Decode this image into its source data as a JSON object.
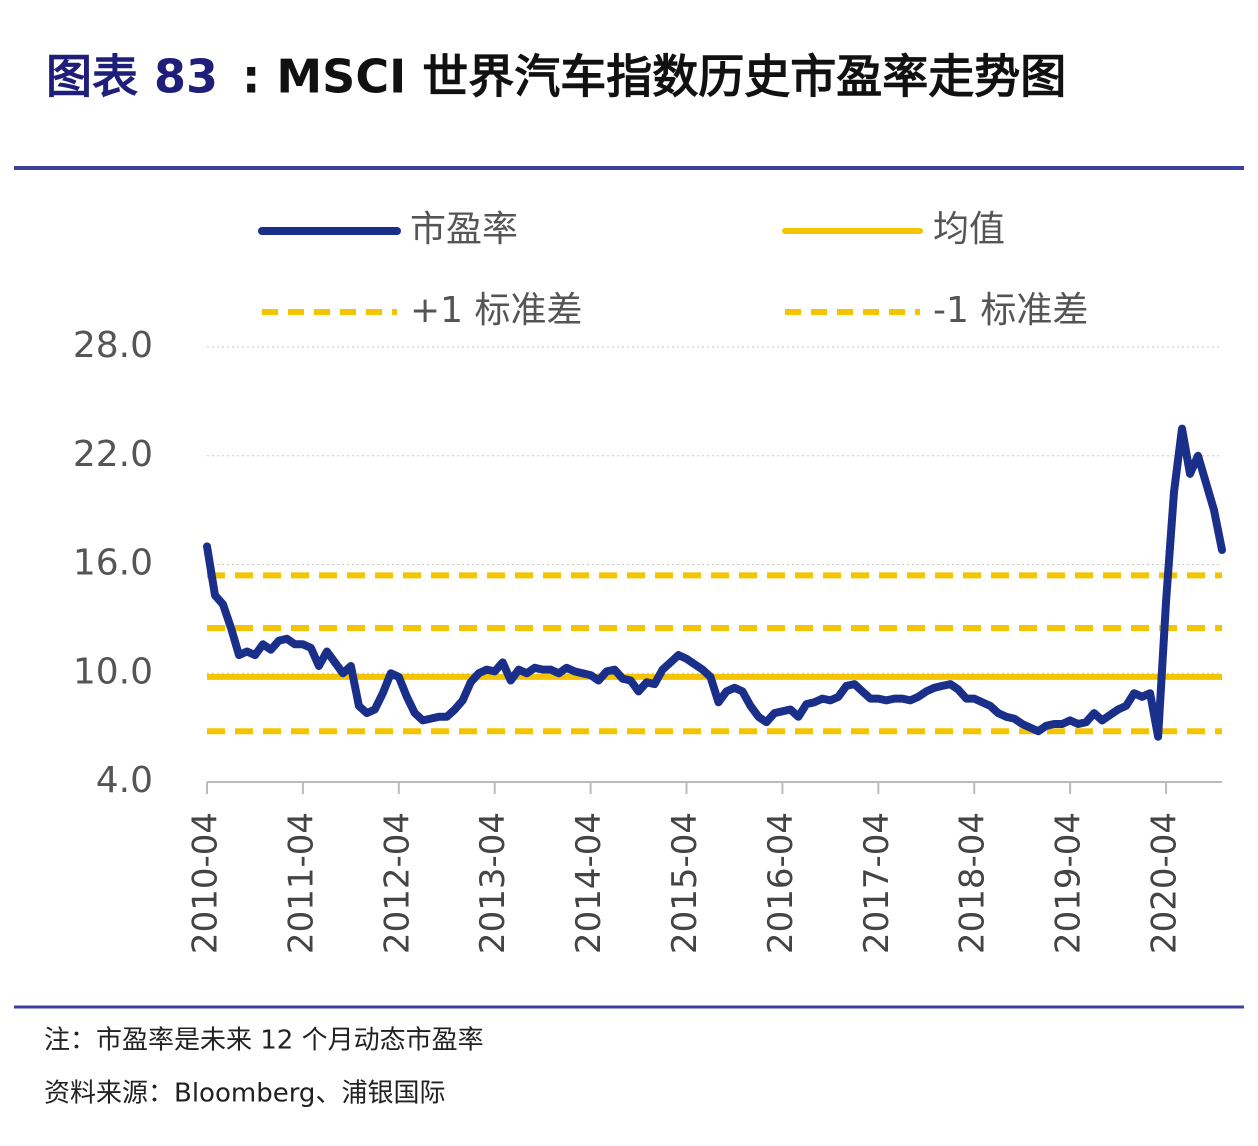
{
  "chart_data": {
    "type": "line",
    "figure_label": "图表 83",
    "title": ": MSCI 世界汽车指数历史市盈率走势图",
    "notes": [
      "注：市盈率是未来 12 个月动态市盈率",
      "资料来源：Bloomberg、浦银国际"
    ],
    "x": [
      "2010-04",
      "2010-05",
      "2010-06",
      "2010-07",
      "2010-08",
      "2010-09",
      "2010-10",
      "2010-11",
      "2010-12",
      "2011-01",
      "2011-02",
      "2011-03",
      "2011-04",
      "2011-05",
      "2011-06",
      "2011-07",
      "2011-08",
      "2011-09",
      "2011-10",
      "2011-11",
      "2011-12",
      "2012-01",
      "2012-02",
      "2012-03",
      "2012-04",
      "2012-05",
      "2012-06",
      "2012-07",
      "2012-08",
      "2012-09",
      "2012-10",
      "2012-11",
      "2012-12",
      "2013-01",
      "2013-02",
      "2013-03",
      "2013-04",
      "2013-05",
      "2013-06",
      "2013-07",
      "2013-08",
      "2013-09",
      "2013-10",
      "2013-11",
      "2013-12",
      "2014-01",
      "2014-02",
      "2014-03",
      "2014-04",
      "2014-05",
      "2014-06",
      "2014-07",
      "2014-08",
      "2014-09",
      "2014-10",
      "2014-11",
      "2014-12",
      "2015-01",
      "2015-02",
      "2015-03",
      "2015-04",
      "2015-05",
      "2015-06",
      "2015-07",
      "2015-08",
      "2015-09",
      "2015-10",
      "2015-11",
      "2015-12",
      "2016-01",
      "2016-02",
      "2016-03",
      "2016-04",
      "2016-05",
      "2016-06",
      "2016-07",
      "2016-08",
      "2016-09",
      "2016-10",
      "2016-11",
      "2016-12",
      "2017-01",
      "2017-02",
      "2017-03",
      "2017-04",
      "2017-05",
      "2017-06",
      "2017-07",
      "2017-08",
      "2017-09",
      "2017-10",
      "2017-11",
      "2017-12",
      "2018-01",
      "2018-02",
      "2018-03",
      "2018-04",
      "2018-05",
      "2018-06",
      "2018-07",
      "2018-08",
      "2018-09",
      "2018-10",
      "2018-11",
      "2018-12",
      "2019-01",
      "2019-02",
      "2019-03",
      "2019-04",
      "2019-05",
      "2019-06",
      "2019-07",
      "2019-08",
      "2019-09",
      "2019-10",
      "2019-11",
      "2019-12",
      "2020-01",
      "2020-02",
      "2020-03",
      "2020-04",
      "2020-05",
      "2020-06",
      "2020-07",
      "2020-08",
      "2020-09",
      "2020-10",
      "2020-11"
    ],
    "series": [
      {
        "name": "市盈率",
        "color": "#1a2f8a",
        "values": [
          17.0,
          14.3,
          13.8,
          12.5,
          11.0,
          11.2,
          11.0,
          11.6,
          11.3,
          11.8,
          11.9,
          11.6,
          11.6,
          11.4,
          10.4,
          11.2,
          10.6,
          10.0,
          10.4,
          8.2,
          7.8,
          8.0,
          8.9,
          10.0,
          9.8,
          8.7,
          7.8,
          7.4,
          7.5,
          7.6,
          7.6,
          8.0,
          8.5,
          9.5,
          10.0,
          10.2,
          10.1,
          10.6,
          9.6,
          10.2,
          10.0,
          10.3,
          10.2,
          10.2,
          10.0,
          10.3,
          10.1,
          10.0,
          9.9,
          9.6,
          10.1,
          10.2,
          9.7,
          9.6,
          9.0,
          9.5,
          9.4,
          10.2,
          10.6,
          11.0,
          10.8,
          10.5,
          10.2,
          9.8,
          8.4,
          9.0,
          9.2,
          9.0,
          8.2,
          7.6,
          7.3,
          7.8,
          7.9,
          8.0,
          7.6,
          8.3,
          8.4,
          8.6,
          8.5,
          8.7,
          9.3,
          9.4,
          9.0,
          8.6,
          8.6,
          8.5,
          8.6,
          8.6,
          8.5,
          8.7,
          9.0,
          9.2,
          9.3,
          9.4,
          9.1,
          8.6,
          8.6,
          8.4,
          8.2,
          7.8,
          7.6,
          7.5,
          7.2,
          7.0,
          6.8,
          7.1,
          7.2,
          7.2,
          7.4,
          7.2,
          7.3,
          7.8,
          7.4,
          7.7,
          8.0,
          8.2,
          8.9,
          8.7,
          8.9,
          6.5,
          14.0,
          20.0,
          23.5,
          21.0,
          22.0,
          20.5,
          19.0,
          16.8
        ]
      }
    ],
    "reference_lines": [
      {
        "name": "均值",
        "value": 9.8,
        "color": "#f5c400",
        "style": "solid"
      },
      {
        "name": "+1 标准差",
        "value": 12.5,
        "color": "#f5c400",
        "style": "dashed"
      },
      {
        "name": "-1 标准差",
        "value": 6.8,
        "color": "#f5c400",
        "style": "dashed"
      },
      {
        "value": 15.4,
        "color": "#f5c400",
        "style": "dashed"
      }
    ],
    "xticks": [
      "2010-04",
      "2011-04",
      "2012-04",
      "2013-04",
      "2014-04",
      "2015-04",
      "2016-04",
      "2017-04",
      "2018-04",
      "2019-04",
      "2020-04"
    ],
    "ylim": [
      4,
      28
    ],
    "yticks": [
      {
        "value": 4,
        "label": "4.0"
      },
      {
        "value": 10,
        "label": "10.0"
      },
      {
        "value": 16,
        "label": "16.0"
      },
      {
        "value": 22,
        "label": "22.0"
      },
      {
        "value": 28,
        "label": "28.0"
      }
    ],
    "grid": true
  }
}
